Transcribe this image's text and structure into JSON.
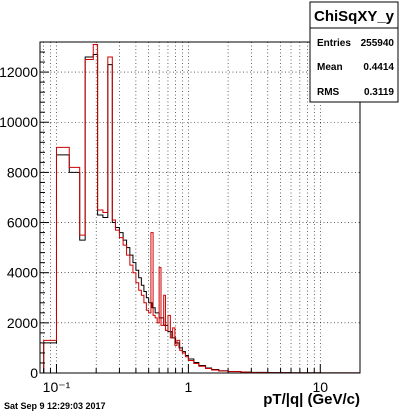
{
  "footer_text": "Sat Sep  9 12:29:03 2017",
  "stats": {
    "title": "ChiSqXY_y",
    "entries_label": "Entries",
    "entries_value": "255940",
    "mean_label": "Mean",
    "mean_value": "0.4414",
    "rms_label": "RMS",
    "rms_value": "0.3119"
  },
  "colors": {
    "black_hist": "#000000",
    "red_hist": "#cc0000",
    "grid": "#000000"
  },
  "chart_data": {
    "type": "histogram-step",
    "title": "",
    "xlabel": "pT/|q| (GeV/c)",
    "ylabel": "",
    "xscale": "log",
    "xlim": [
      0.075,
      20
    ],
    "ylim": [
      0,
      13200
    ],
    "grid": true,
    "x_tick_labels": [
      {
        "value": 0.1,
        "label": "10⁻¹"
      },
      {
        "value": 1,
        "label": "1"
      },
      {
        "value": 10,
        "label": "10"
      }
    ],
    "y_tick_labels": [
      {
        "value": 2000,
        "label": "2000"
      },
      {
        "value": 4000,
        "label": "4000"
      },
      {
        "value": 6000,
        "label": "6000"
      },
      {
        "value": 8000,
        "label": "8000"
      },
      {
        "value": 10000,
        "label": "10000"
      },
      {
        "value": 12000,
        "label": "12000"
      }
    ],
    "series": [
      {
        "color": "black",
        "bins": [
          [
            0.08,
            0.1,
            1200
          ],
          [
            0.1,
            0.125,
            8700
          ],
          [
            0.125,
            0.15,
            8000
          ],
          [
            0.15,
            0.165,
            5300
          ],
          [
            0.165,
            0.19,
            12600
          ],
          [
            0.19,
            0.205,
            12700
          ],
          [
            0.205,
            0.225,
            6300
          ],
          [
            0.225,
            0.245,
            6200
          ],
          [
            0.245,
            0.265,
            12300
          ],
          [
            0.265,
            0.28,
            6000
          ],
          [
            0.28,
            0.3,
            5800
          ],
          [
            0.3,
            0.32,
            5600
          ],
          [
            0.32,
            0.34,
            5300
          ],
          [
            0.34,
            0.36,
            5000
          ],
          [
            0.36,
            0.38,
            4700
          ],
          [
            0.38,
            0.4,
            4400
          ],
          [
            0.4,
            0.42,
            4100
          ],
          [
            0.42,
            0.44,
            3800
          ],
          [
            0.44,
            0.46,
            3500
          ],
          [
            0.46,
            0.48,
            3250
          ],
          [
            0.48,
            0.5,
            3000
          ],
          [
            0.5,
            0.53,
            2800
          ],
          [
            0.53,
            0.56,
            2600
          ],
          [
            0.56,
            0.6,
            2400
          ],
          [
            0.6,
            0.65,
            2200
          ],
          [
            0.65,
            0.7,
            1900
          ],
          [
            0.7,
            0.75,
            1650
          ],
          [
            0.75,
            0.8,
            1400
          ],
          [
            0.8,
            0.85,
            1200
          ],
          [
            0.85,
            0.9,
            1000
          ],
          [
            0.9,
            0.95,
            850
          ],
          [
            0.95,
            1.0,
            700
          ],
          [
            1.0,
            1.1,
            560
          ],
          [
            1.1,
            1.2,
            420
          ],
          [
            1.2,
            1.35,
            300
          ],
          [
            1.35,
            1.5,
            200
          ],
          [
            1.5,
            1.7,
            140
          ],
          [
            1.7,
            2.0,
            90
          ],
          [
            2.0,
            2.5,
            60
          ],
          [
            2.5,
            3.0,
            40
          ],
          [
            3.0,
            4.0,
            25
          ],
          [
            4.0,
            6.0,
            15
          ],
          [
            6.0,
            10.0,
            8
          ],
          [
            10.0,
            20.0,
            4
          ]
        ]
      },
      {
        "color": "red",
        "bins": [
          [
            0.08,
            0.1,
            1300
          ],
          [
            0.1,
            0.125,
            9000
          ],
          [
            0.125,
            0.15,
            8200
          ],
          [
            0.15,
            0.165,
            5500
          ],
          [
            0.165,
            0.19,
            12500
          ],
          [
            0.19,
            0.205,
            13100
          ],
          [
            0.205,
            0.225,
            6500
          ],
          [
            0.225,
            0.245,
            6400
          ],
          [
            0.245,
            0.265,
            12600
          ],
          [
            0.265,
            0.28,
            6100
          ],
          [
            0.28,
            0.3,
            5700
          ],
          [
            0.3,
            0.32,
            5400
          ],
          [
            0.32,
            0.34,
            5100
          ],
          [
            0.34,
            0.36,
            4700
          ],
          [
            0.36,
            0.38,
            4300
          ],
          [
            0.38,
            0.4,
            4000
          ],
          [
            0.4,
            0.42,
            3600
          ],
          [
            0.42,
            0.44,
            3300
          ],
          [
            0.44,
            0.46,
            3100
          ],
          [
            0.46,
            0.48,
            2800
          ],
          [
            0.48,
            0.5,
            2500
          ],
          [
            0.5,
            0.52,
            2400
          ],
          [
            0.52,
            0.54,
            5600
          ],
          [
            0.54,
            0.56,
            2300
          ],
          [
            0.56,
            0.58,
            2200
          ],
          [
            0.58,
            0.6,
            2000
          ],
          [
            0.6,
            0.62,
            4200
          ],
          [
            0.62,
            0.65,
            1900
          ],
          [
            0.65,
            0.67,
            3100
          ],
          [
            0.67,
            0.7,
            1700
          ],
          [
            0.7,
            0.73,
            2300
          ],
          [
            0.73,
            0.76,
            1400
          ],
          [
            0.76,
            0.79,
            1800
          ],
          [
            0.79,
            0.82,
            1100
          ],
          [
            0.82,
            0.86,
            1300
          ],
          [
            0.86,
            0.9,
            900
          ],
          [
            0.9,
            0.95,
            800
          ],
          [
            0.95,
            1.0,
            650
          ],
          [
            1.0,
            1.1,
            500
          ],
          [
            1.1,
            1.2,
            380
          ],
          [
            1.2,
            1.35,
            270
          ],
          [
            1.35,
            1.5,
            180
          ],
          [
            1.5,
            1.7,
            120
          ],
          [
            1.7,
            2.0,
            80
          ],
          [
            2.0,
            2.5,
            55
          ],
          [
            2.5,
            3.0,
            35
          ],
          [
            3.0,
            4.0,
            22
          ],
          [
            4.0,
            6.0,
            12
          ],
          [
            6.0,
            10.0,
            7
          ],
          [
            10.0,
            20.0,
            3
          ]
        ]
      }
    ]
  }
}
